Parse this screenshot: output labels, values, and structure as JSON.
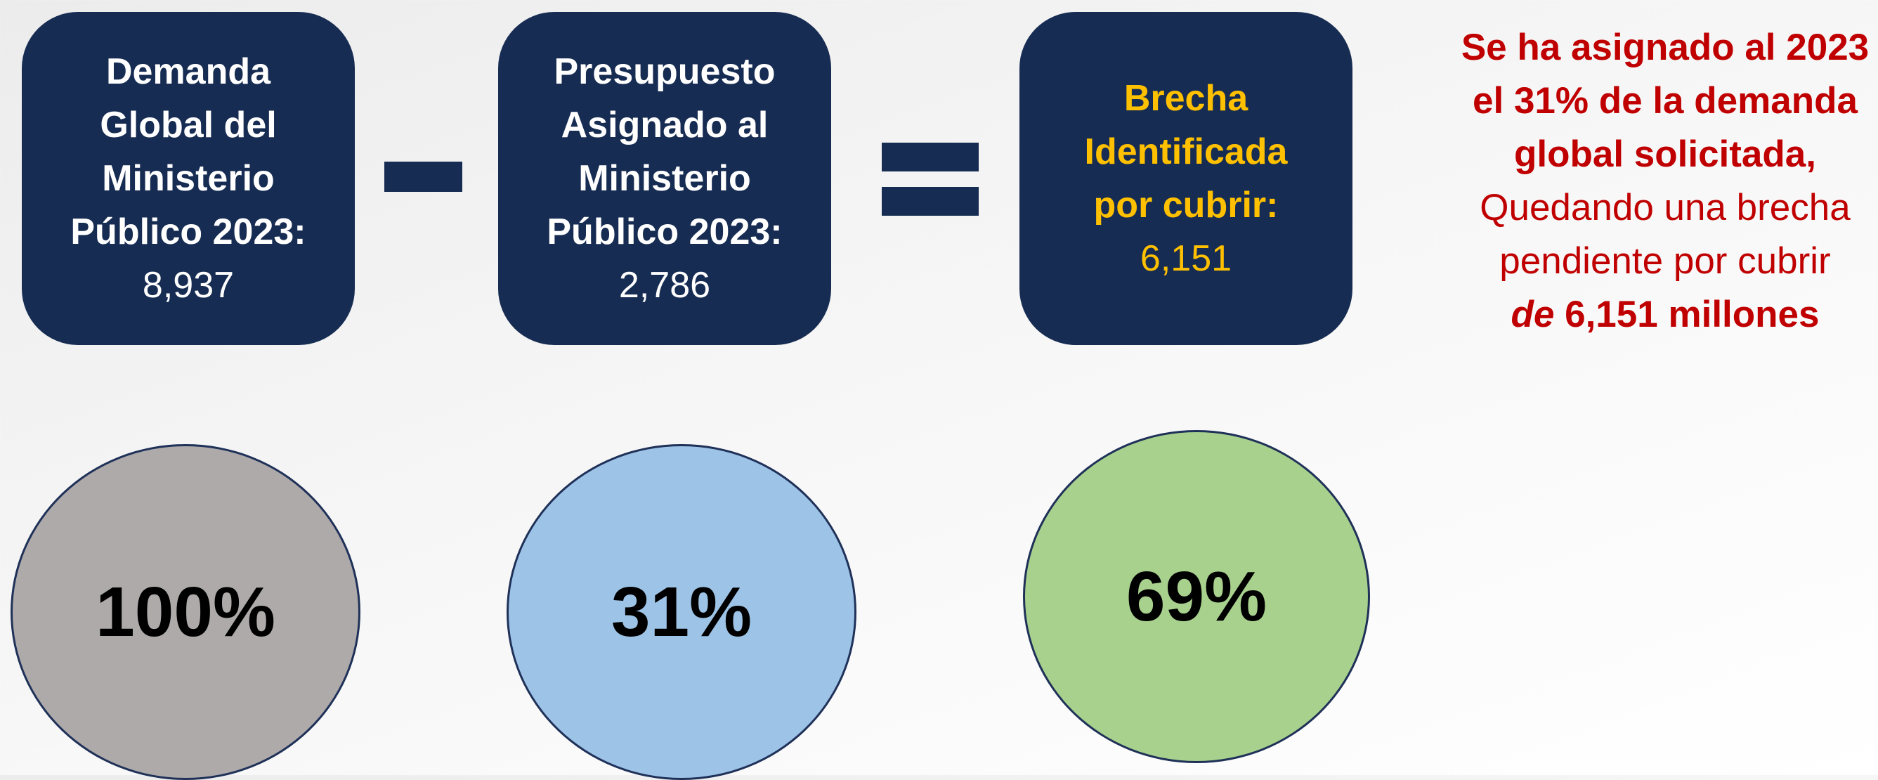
{
  "boxes": [
    {
      "label": [
        "Demanda",
        "Global del",
        "Ministerio",
        "Público 2023:"
      ],
      "value": "8,937"
    },
    {
      "label": [
        "Presupuesto",
        "Asignado al",
        "Ministerio",
        "Público 2023:"
      ],
      "value": "2,786"
    },
    {
      "label": [
        "Brecha",
        "Identificada",
        "por cubrir:"
      ],
      "value": "6,151"
    }
  ],
  "circles": [
    {
      "label": "100%"
    },
    {
      "label": "31%"
    },
    {
      "label": "69%"
    }
  ],
  "note": {
    "bold": [
      "Se ha asignado al 2023",
      "el 31% de la demanda",
      "global solicitada,"
    ],
    "normal": [
      "Quedando una brecha",
      "pendiente por cubrir"
    ],
    "italic": "de",
    "bold_end": "6,151 millones"
  }
}
